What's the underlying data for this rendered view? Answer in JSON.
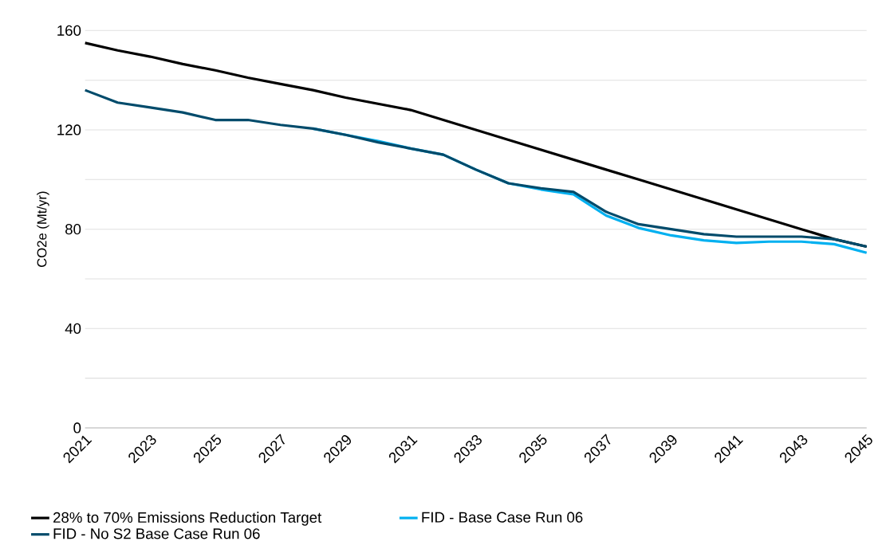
{
  "chart_data": {
    "type": "line",
    "ylabel": "CO2e (Mt/yr)",
    "x": [
      2021,
      2022,
      2023,
      2024,
      2025,
      2026,
      2027,
      2028,
      2029,
      2030,
      2031,
      2032,
      2033,
      2034,
      2035,
      2036,
      2037,
      2038,
      2039,
      2040,
      2041,
      2042,
      2043,
      2044,
      2045
    ],
    "series": [
      {
        "name": "28% to 70% Emissions Reduction Target",
        "color": "#000000",
        "values": [
          155,
          152,
          149.5,
          146.5,
          144,
          141,
          138.5,
          136,
          133,
          130.5,
          128,
          124,
          120,
          116,
          112,
          108,
          104,
          100,
          96,
          92,
          88,
          84,
          80,
          76,
          73
        ]
      },
      {
        "name": "FID - Base Case Run 06",
        "color": "#00b0f0",
        "values": [
          null,
          null,
          null,
          null,
          null,
          null,
          null,
          120.5,
          118,
          115.5,
          112.5,
          110,
          104,
          98.5,
          96,
          94,
          85.5,
          80.5,
          77.5,
          75.5,
          74.5,
          75,
          75,
          74,
          70.5
        ]
      },
      {
        "name": "FID - No S2 Base Case Run 06",
        "color": "#004b6b",
        "values": [
          136,
          131,
          129,
          127,
          124,
          124,
          122,
          120.5,
          118,
          115,
          112.5,
          110,
          104,
          98.5,
          96.5,
          95,
          87,
          82,
          80,
          78,
          77,
          77,
          77,
          76,
          73
        ]
      }
    ],
    "xlim": [
      2021,
      2045
    ],
    "xticks": [
      2021,
      2023,
      2025,
      2027,
      2029,
      2031,
      2033,
      2035,
      2037,
      2039,
      2041,
      2043,
      2045
    ],
    "ylim": [
      0,
      160
    ],
    "yticks": [
      0,
      {
        "value": 20,
        "label": null
      },
      40,
      {
        "value": 60,
        "label": null
      },
      80,
      {
        "value": 100,
        "label": null
      },
      120,
      {
        "value": 140,
        "label": null
      },
      160
    ],
    "grid": "y",
    "legend": "bottom",
    "marker": "none",
    "line_style": "solid"
  }
}
